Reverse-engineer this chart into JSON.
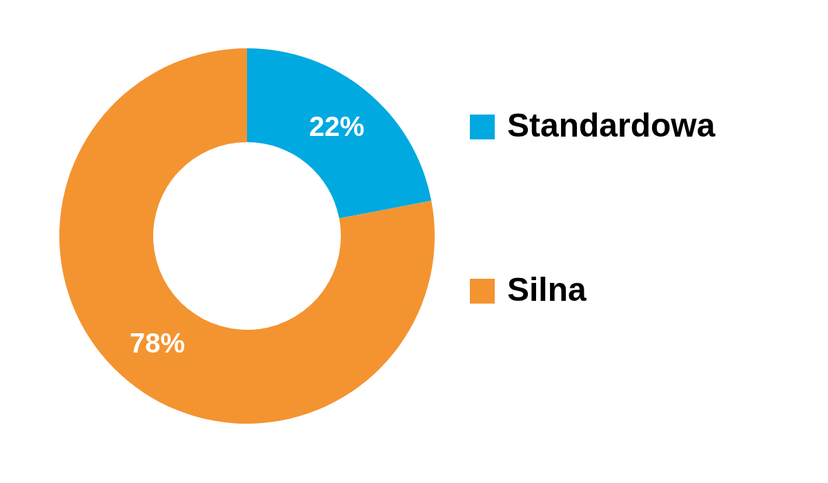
{
  "chart_data": {
    "type": "donut",
    "categories": [
      "Standardowa",
      "Silna"
    ],
    "values": [
      22,
      78
    ],
    "colors": [
      "#00a9e0",
      "#f39431"
    ],
    "value_labels": [
      "22%",
      "78%"
    ],
    "legend": "right"
  }
}
